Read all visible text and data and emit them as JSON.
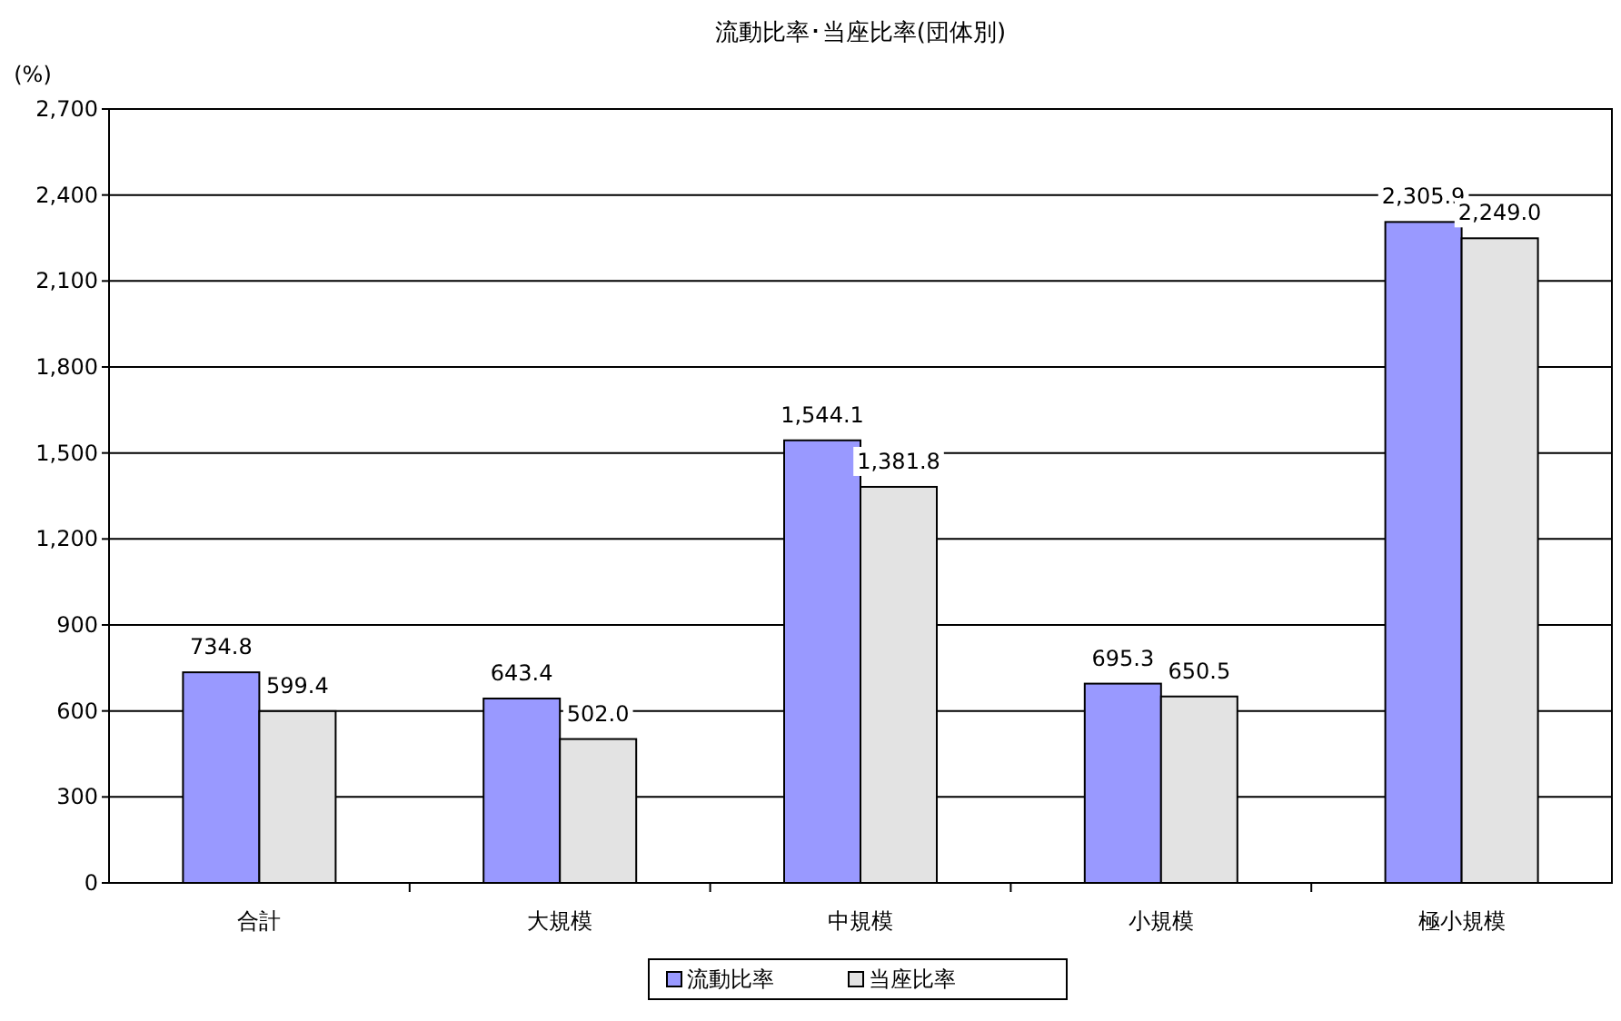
{
  "chart_data": {
    "type": "bar",
    "title": "流動比率･当座比率(団体別)",
    "ylabel": "(%)",
    "categories": [
      "合計",
      "大規模",
      "中規模",
      "小規模",
      "極小規模"
    ],
    "series": [
      {
        "name": "流動比率",
        "color": "#9999ff",
        "values": [
          734.8,
          643.4,
          1544.1,
          695.3,
          2305.9
        ],
        "value_labels": [
          "734.8",
          "643.4",
          "1,544.1",
          "695.3",
          "2,305.9"
        ]
      },
      {
        "name": "当座比率",
        "color": "#e3e3e3",
        "values": [
          599.4,
          502.0,
          1381.8,
          650.5,
          2249.0
        ],
        "value_labels": [
          "599.4",
          "502.0",
          "1,381.8",
          "650.5",
          "2,249.0"
        ]
      }
    ],
    "ylim": [
      0,
      2700
    ],
    "yticks": [
      {
        "value": 0,
        "label": "0"
      },
      {
        "value": 300,
        "label": "300"
      },
      {
        "value": 600,
        "label": "600"
      },
      {
        "value": 900,
        "label": "900"
      },
      {
        "value": 1200,
        "label": "1,200"
      },
      {
        "value": 1500,
        "label": "1,500"
      },
      {
        "value": 1800,
        "label": "1,800"
      },
      {
        "value": 2100,
        "label": "2,100"
      },
      {
        "value": 2400,
        "label": "2,400"
      },
      {
        "value": 2700,
        "label": "2,700"
      }
    ],
    "grid": "y",
    "legend": "bottom"
  }
}
